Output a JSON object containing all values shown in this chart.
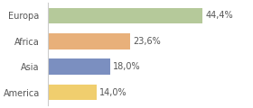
{
  "categories": [
    "Europa",
    "Africa",
    "Asia",
    "America"
  ],
  "values": [
    44.4,
    23.6,
    18.0,
    14.0
  ],
  "labels": [
    "44,4%",
    "23,6%",
    "18,0%",
    "14,0%"
  ],
  "bar_colors": [
    "#b5c99a",
    "#e8b07a",
    "#7b8fc0",
    "#f0ce6e"
  ],
  "background_color": "#ffffff",
  "plot_area_color": "#ffffff",
  "xlim": [
    0,
    58
  ],
  "bar_height": 0.62,
  "label_fontsize": 7.0,
  "category_fontsize": 7.0,
  "label_color": "#555555",
  "spine_color": "#cccccc"
}
